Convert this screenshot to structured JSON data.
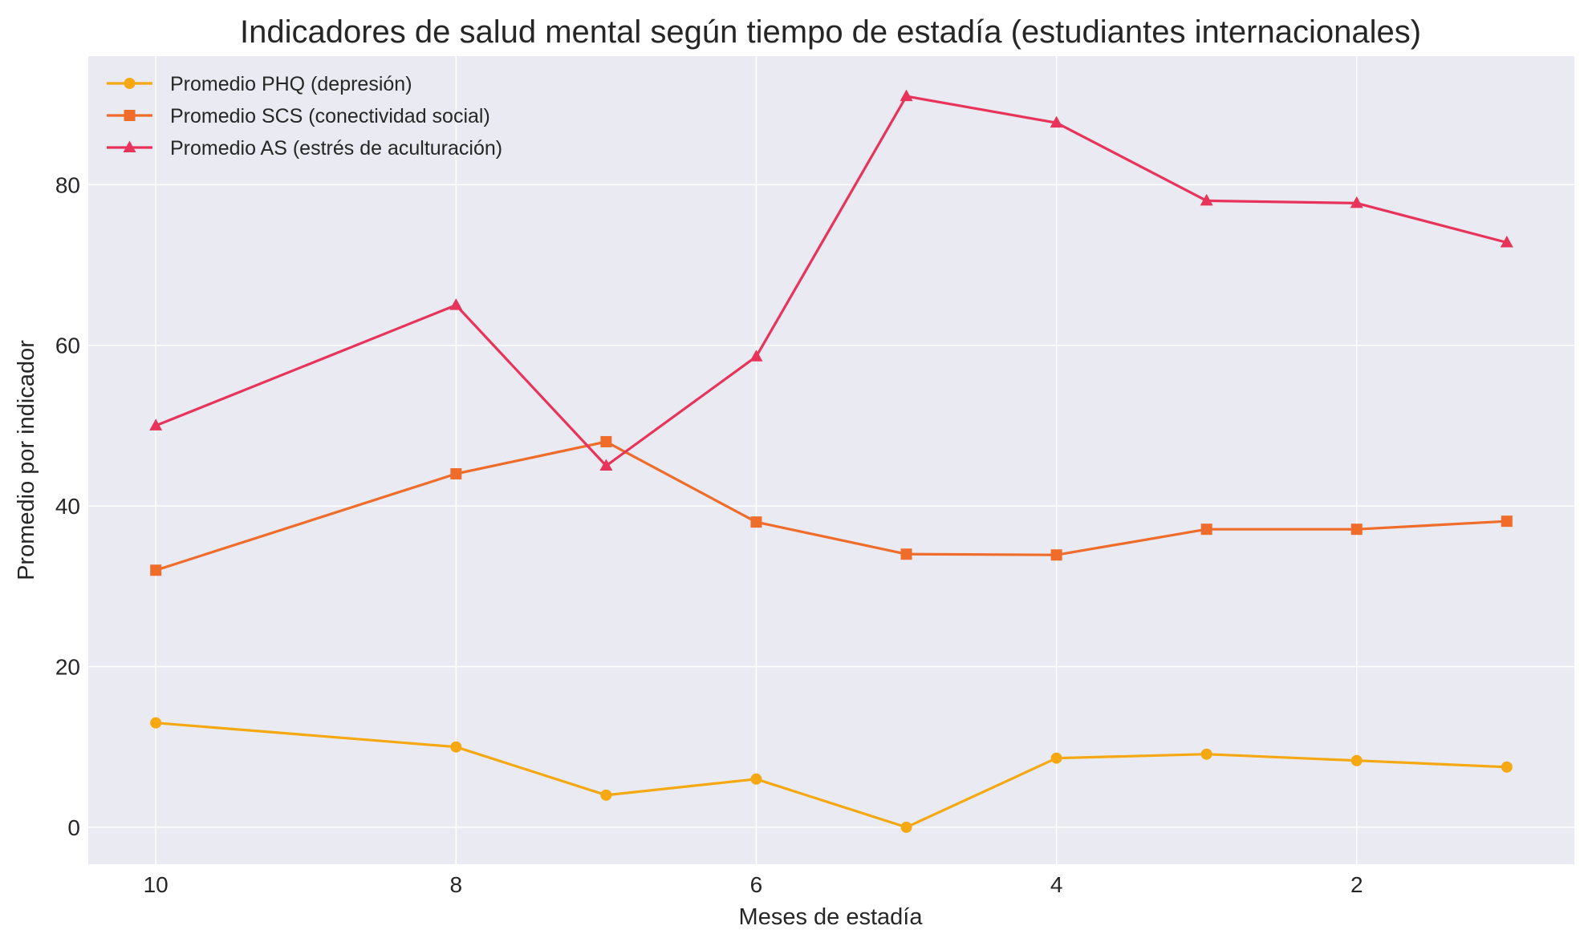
{
  "chart_data": {
    "type": "line",
    "title": "Indicadores de salud mental según tiempo de estadía (estudiantes internacionales)",
    "xlabel": "Meses de estadía",
    "ylabel": "Promedio por indicador",
    "x_axis": "reversed",
    "xlim": [
      10.45,
      0.55
    ],
    "ylim": [
      -4.6,
      96.0
    ],
    "x_ticks": [
      10,
      8,
      6,
      4,
      2
    ],
    "y_ticks": [
      0,
      20,
      40,
      60,
      80
    ],
    "grid": true,
    "legend_position": "top-left",
    "x": [
      10,
      8,
      7,
      6,
      5,
      4,
      3,
      2,
      1
    ],
    "series": [
      {
        "name": "Promedio PHQ (depresión)",
        "marker": "circle",
        "color": "#f5a811",
        "values": [
          13.0,
          10.0,
          4.0,
          6.0,
          0.0,
          8.6,
          9.1,
          8.3,
          7.5
        ]
      },
      {
        "name": "Promedio SCS (conectividad social)",
        "marker": "square",
        "color": "#ef6c2a",
        "values": [
          32.0,
          44.0,
          48.0,
          38.0,
          34.0,
          33.9,
          37.1,
          37.1,
          38.1
        ]
      },
      {
        "name": "Promedio AS (estrés de aculturación)",
        "marker": "triangle",
        "color": "#e8345a",
        "values": [
          50.0,
          65.0,
          45.0,
          58.6,
          91.0,
          87.7,
          78.0,
          77.7,
          72.8
        ]
      }
    ]
  }
}
